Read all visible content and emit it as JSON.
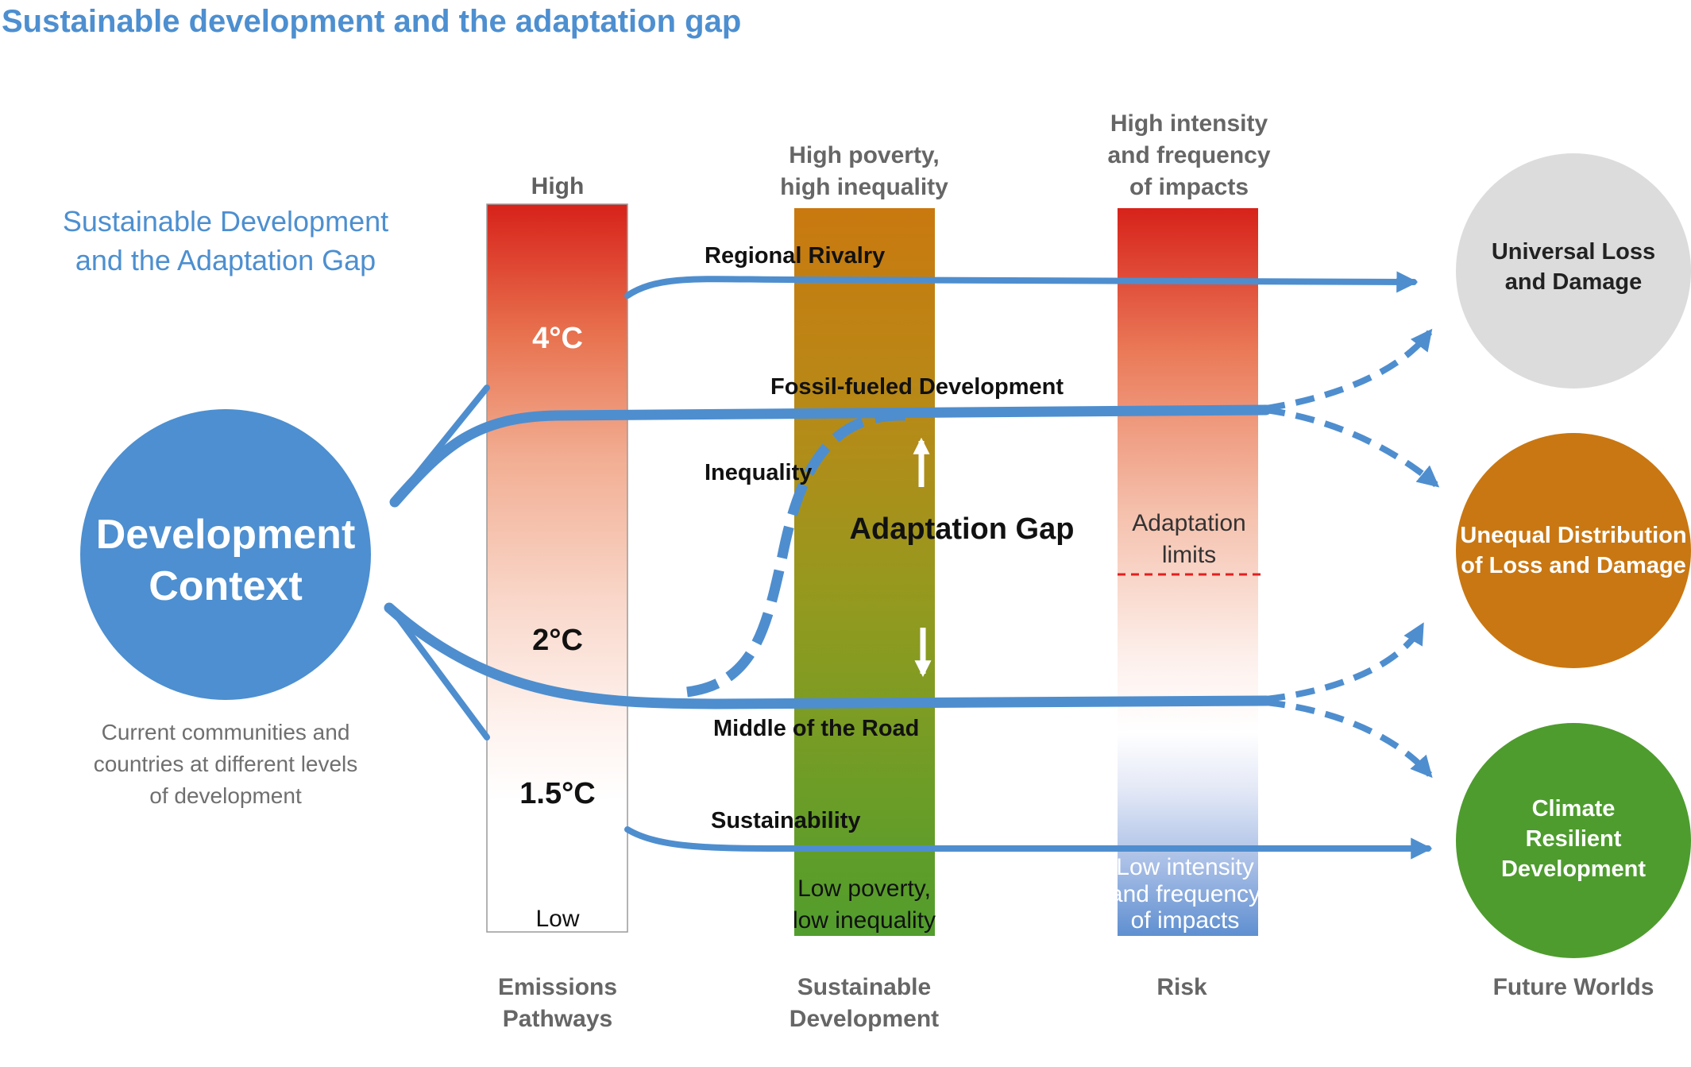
{
  "title": "Sustainable development and the adaptation gap",
  "subtitle": [
    "Sustainable Development",
    "and the Adaptation Gap"
  ],
  "development_context": {
    "label": [
      "Development",
      "Context"
    ],
    "description": [
      "Current communities and",
      "countries at different levels",
      "of development"
    ]
  },
  "emissions": {
    "top_label": "High",
    "bottom_label": "Low",
    "temps": [
      "4°C",
      "2°C",
      "1.5°C"
    ],
    "axis_label": [
      "Emissions",
      "Pathways"
    ]
  },
  "sustainable_development": {
    "top_label": [
      "High poverty,",
      "high inequality"
    ],
    "bottom_label": [
      "Low poverty,",
      "low inequality"
    ],
    "axis_label": [
      "Sustainable",
      "Development"
    ]
  },
  "risk": {
    "top_label": [
      "High intensity",
      "and frequency",
      "of impacts"
    ],
    "bottom_label": [
      "Low intensity",
      "and frequency",
      "of impacts"
    ],
    "adaptation_limits": [
      "Adaptation",
      "limits"
    ],
    "axis_label": "Risk"
  },
  "pathways": {
    "regional_rivalry": "Regional Rivalry",
    "fossil_fueled": "Fossil-fueled Development",
    "inequality": "Inequality",
    "middle_of_road": "Middle of the Road",
    "sustainability": "Sustainability"
  },
  "adaptation_gap": "Adaptation Gap",
  "future_worlds": {
    "axis_label": "Future Worlds",
    "universal": [
      "Universal Loss",
      "and Damage"
    ],
    "unequal": [
      "Unequal Distribution",
      "of Loss and Damage"
    ],
    "resilient": [
      "Climate",
      "Resilient",
      "Development"
    ]
  },
  "colors": {
    "title_blue": "#4d8fd0",
    "arrow_blue": "#4e8ecf",
    "context_blue": "#4d8fd0",
    "universal_grey": "#dcdcdc",
    "unequal_orange": "#c97712",
    "resilient_green": "#4e9c2e",
    "limit_red": "#e02020"
  }
}
